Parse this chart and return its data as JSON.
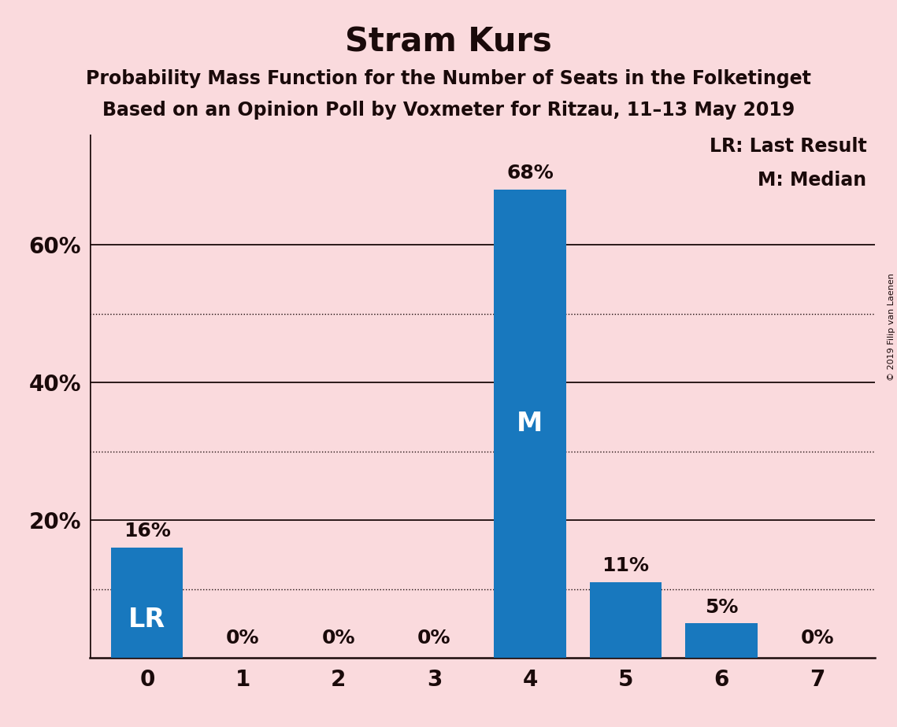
{
  "title": "Stram Kurs",
  "subtitle1": "Probability Mass Function for the Number of Seats in the Folketinget",
  "subtitle2": "Based on an Opinion Poll by Voxmeter for Ritzau, 11–13 May 2019",
  "categories": [
    0,
    1,
    2,
    3,
    4,
    5,
    6,
    7
  ],
  "values": [
    16,
    0,
    0,
    0,
    68,
    11,
    5,
    0
  ],
  "bar_color": "#1878be",
  "background_color": "#fadadd",
  "text_color": "#1a0a0a",
  "bar_labels": [
    "16%",
    "0%",
    "0%",
    "0%",
    "68%",
    "11%",
    "5%",
    "0%"
  ],
  "inside_labels": [
    {
      "bar": 0,
      "text": "LR"
    },
    {
      "bar": 4,
      "text": "M"
    }
  ],
  "legend_lines": [
    "LR: Last Result",
    "M: Median"
  ],
  "ylim": [
    0,
    76
  ],
  "yticks_major": [
    20,
    40,
    60
  ],
  "yticks_minor": [
    10,
    30,
    50
  ],
  "copyright_text": "© 2019 Filip van Laenen",
  "title_fontsize": 30,
  "subtitle_fontsize": 17,
  "axis_label_fontsize": 20,
  "bar_label_fontsize": 18,
  "inside_label_fontsize": 24,
  "legend_fontsize": 17,
  "bar_width": 0.75
}
